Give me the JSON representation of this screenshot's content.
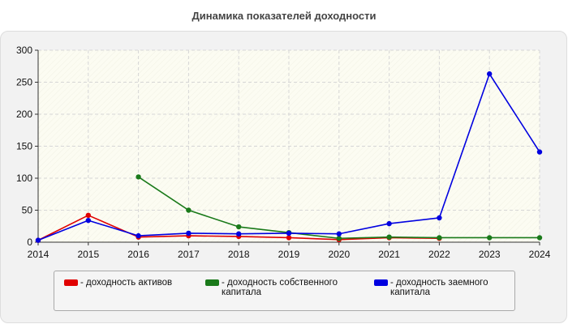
{
  "chart_data": {
    "type": "line",
    "title": "Динамика показателей доходности",
    "x": [
      "2014",
      "2015",
      "2016",
      "2017",
      "2018",
      "2019",
      "2020",
      "2021",
      "2022",
      "2023",
      "2024"
    ],
    "y_ticks": [
      "0",
      "50",
      "100",
      "150",
      "200",
      "250",
      "300"
    ],
    "ylim": [
      0,
      300
    ],
    "grid": true,
    "legend_position": "bottom",
    "series": [
      {
        "name": "- доходность активов",
        "color": "#e00000",
        "values": [
          3,
          42,
          8,
          10,
          9,
          7,
          4,
          7,
          6,
          null,
          null
        ]
      },
      {
        "name": "- доходность собственного капитала",
        "color": "#1a7a1a",
        "values": [
          null,
          null,
          102,
          50,
          24,
          15,
          6,
          8,
          7,
          7,
          7
        ]
      },
      {
        "name": "- доходность заемного капитала",
        "color": "#0000e0",
        "values": [
          3,
          34,
          10,
          14,
          13,
          14,
          13,
          29,
          38,
          263,
          141
        ]
      }
    ]
  }
}
